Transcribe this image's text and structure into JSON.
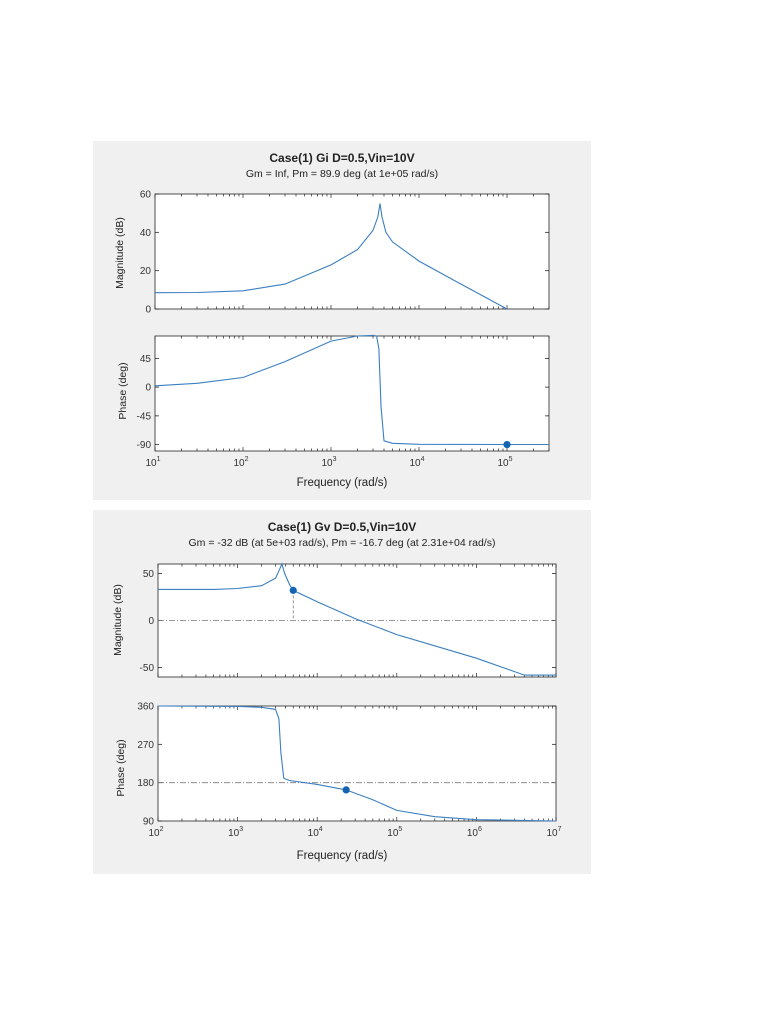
{
  "chart_data": [
    {
      "type": "line",
      "title": "Case(1) Gi D=0.5,Vin=10V",
      "subtitle": "Gm = Inf,  Pm = 89.9 deg (at 1e+05 rad/s)",
      "xlabel": "Frequency (rad/s)",
      "xscale": "log",
      "xlim": [
        10,
        300000
      ],
      "xticks": [
        10,
        100,
        1000,
        10000,
        100000
      ],
      "xtick_labels": [
        {
          "base": "10",
          "exp": "1"
        },
        {
          "base": "10",
          "exp": "2"
        },
        {
          "base": "10",
          "exp": "3"
        },
        {
          "base": "10",
          "exp": "4"
        },
        {
          "base": "10",
          "exp": "5"
        }
      ],
      "magnitude": {
        "ylabel": "Magnitude (dB)",
        "ylim": [
          0,
          60
        ],
        "yticks": [
          0,
          20,
          40,
          60
        ],
        "x": [
          10,
          30,
          100,
          300,
          1000,
          2000,
          3000,
          3400,
          3600,
          3800,
          4200,
          5000,
          10000,
          30000,
          100000
        ],
        "y": [
          8.5,
          8.6,
          9.5,
          13,
          23,
          31,
          41,
          48,
          55,
          48,
          40,
          35,
          25,
          13,
          0
        ]
      },
      "phase": {
        "ylabel": "Phase (deg)",
        "ylim": [
          -100,
          80
        ],
        "yticks": [
          -90,
          -45,
          0,
          45
        ],
        "x": [
          10,
          30,
          100,
          300,
          1000,
          2000,
          3000,
          3300,
          3500,
          3700,
          4000,
          5000,
          10000,
          100000,
          300000
        ],
        "y": [
          2,
          6,
          15,
          40,
          72,
          80,
          81,
          80,
          60,
          -30,
          -84,
          -88,
          -89.5,
          -89.9,
          -89.9
        ]
      },
      "markers": [
        {
          "plot": "phase",
          "x": 100000,
          "y": -89.9
        }
      ],
      "reference_lines": [],
      "color": "#3b7fc0",
      "marker_color": "#1464b4"
    },
    {
      "type": "line",
      "title": "Case(1) Gv D=0.5,Vin=10V",
      "subtitle": "Gm = -32 dB (at 5e+03 rad/s),  Pm = -16.7 deg (at 2.31e+04 rad/s)",
      "xlabel": "Frequency (rad/s)",
      "xscale": "log",
      "xlim": [
        100,
        10000000
      ],
      "xticks": [
        100,
        1000,
        10000,
        100000,
        1000000,
        10000000
      ],
      "xtick_labels": [
        {
          "base": "10",
          "exp": "2"
        },
        {
          "base": "10",
          "exp": "3"
        },
        {
          "base": "10",
          "exp": "4"
        },
        {
          "base": "10",
          "exp": "5"
        },
        {
          "base": "10",
          "exp": "6"
        },
        {
          "base": "10",
          "exp": "7"
        }
      ],
      "magnitude": {
        "ylabel": "Magnitude (dB)",
        "ylim": [
          -60,
          60
        ],
        "yticks": [
          -50,
          0,
          50
        ],
        "x": [
          100,
          500,
          1000,
          2000,
          3000,
          3400,
          3600,
          3900,
          4500,
          5000,
          10000,
          30000,
          100000,
          1000000,
          4000000,
          10000000
        ],
        "y": [
          33,
          33,
          34,
          37,
          45,
          55,
          60,
          50,
          38,
          32,
          20,
          2,
          -15,
          -40,
          -58,
          -58
        ]
      },
      "phase": {
        "ylabel": "Phase (deg)",
        "ylim": [
          90,
          360
        ],
        "yticks": [
          90,
          180,
          270,
          360
        ],
        "x": [
          100,
          1000,
          2000,
          3000,
          3300,
          3500,
          3800,
          4500,
          10000,
          23100,
          50000,
          100000,
          300000,
          1000000,
          10000000
        ],
        "y": [
          360,
          359,
          357,
          352,
          330,
          250,
          190,
          185,
          176,
          163,
          140,
          115,
          100,
          93,
          90
        ]
      },
      "markers": [
        {
          "plot": "magnitude",
          "x": 5000,
          "y": 32
        },
        {
          "plot": "phase",
          "x": 23100,
          "y": 163
        }
      ],
      "reference_lines": [
        {
          "plot": "magnitude",
          "y": 0
        },
        {
          "plot": "phase",
          "y": 180
        },
        {
          "plot": "magnitude",
          "x": 5000,
          "from_y": 32,
          "to_y": 0
        }
      ],
      "color": "#3b7fc0",
      "marker_color": "#1464b4"
    }
  ]
}
